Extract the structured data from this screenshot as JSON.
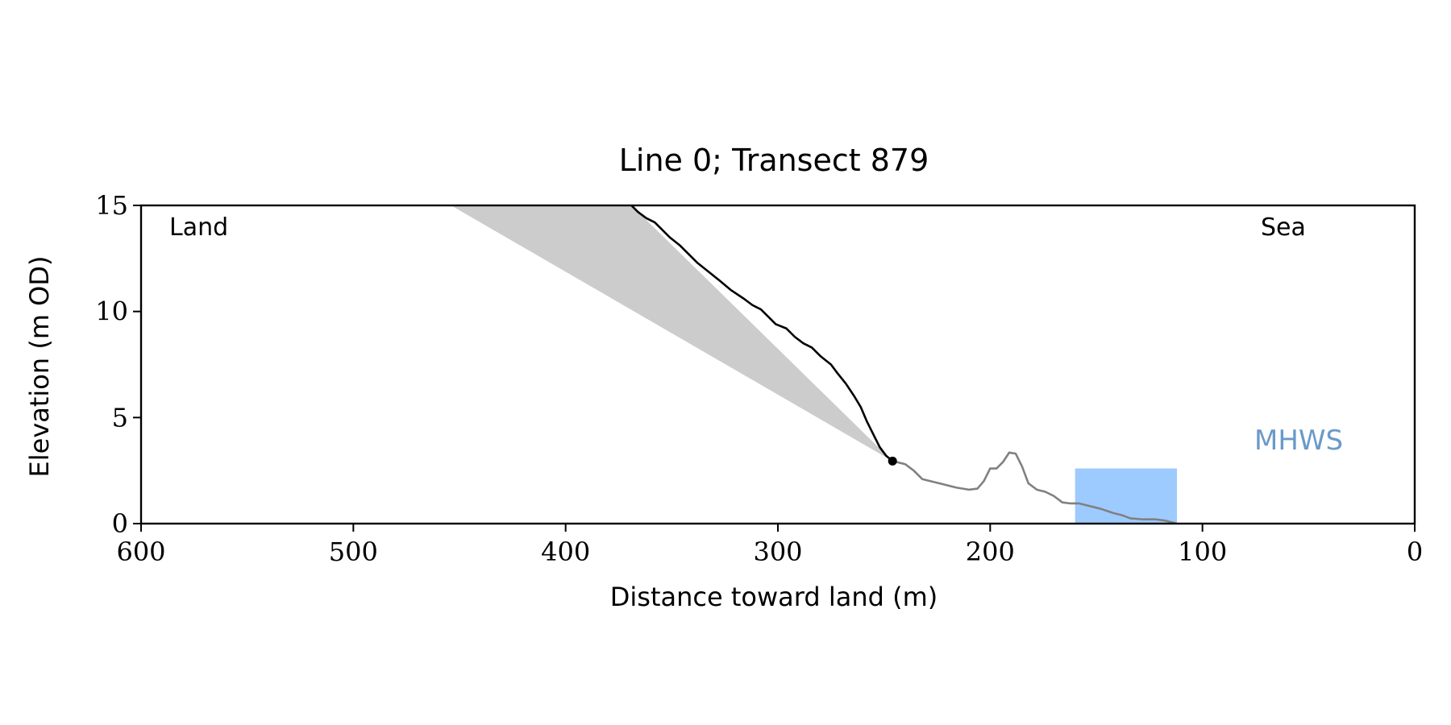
{
  "chart_data": {
    "type": "line",
    "title": "Line 0; Transect 879",
    "xlabel": "Distance toward land (m)",
    "ylabel": "Elevation (m OD)",
    "xlim": [
      600,
      0
    ],
    "ylim": [
      0,
      15
    ],
    "x_ticks": [
      600,
      500,
      400,
      300,
      200,
      100,
      0
    ],
    "y_ticks": [
      0,
      5,
      10,
      15
    ],
    "grid": false,
    "annotations": {
      "land_label": "Land",
      "sea_label": "Sea",
      "mhws_label": "MHWS"
    },
    "colors": {
      "cliff_line": "#000000",
      "beach_line": "#808080",
      "shaded_wedge": "#cccccc",
      "mhws_fill": "#9ecbff",
      "mhws_text": "#6a9ac8"
    },
    "series": [
      {
        "values_xy": [
          [
            369,
            15.0
          ],
          [
            366,
            14.7
          ],
          [
            362,
            14.4
          ],
          [
            358,
            14.2
          ],
          [
            355,
            13.9
          ],
          [
            351,
            13.5
          ],
          [
            346,
            13.1
          ],
          [
            342,
            12.7
          ],
          [
            338,
            12.3
          ],
          [
            333,
            11.9
          ],
          [
            328,
            11.5
          ],
          [
            322,
            11.0
          ],
          [
            316,
            10.6
          ],
          [
            312,
            10.3
          ],
          [
            308,
            10.1
          ],
          [
            305,
            9.8
          ],
          [
            301,
            9.4
          ],
          [
            296,
            9.2
          ],
          [
            292,
            8.8
          ],
          [
            288,
            8.5
          ],
          [
            284,
            8.3
          ],
          [
            280,
            7.9
          ],
          [
            275,
            7.5
          ],
          [
            272,
            7.1
          ],
          [
            268,
            6.6
          ],
          [
            264,
            6.0
          ],
          [
            261,
            5.5
          ],
          [
            258,
            4.8
          ],
          [
            255,
            4.2
          ],
          [
            252,
            3.6
          ],
          [
            249,
            3.2
          ],
          [
            246,
            2.95
          ]
        ]
      },
      {
        "values_xy": [
          [
            246,
            2.95
          ],
          [
            240,
            2.8
          ],
          [
            236,
            2.5
          ],
          [
            232,
            2.1
          ],
          [
            228,
            2.0
          ],
          [
            222,
            1.85
          ],
          [
            216,
            1.7
          ],
          [
            210,
            1.6
          ],
          [
            206,
            1.65
          ],
          [
            203,
            2.0
          ],
          [
            200,
            2.6
          ],
          [
            197,
            2.6
          ],
          [
            194,
            2.9
          ],
          [
            191,
            3.35
          ],
          [
            188,
            3.3
          ],
          [
            185,
            2.7
          ],
          [
            182,
            1.9
          ],
          [
            178,
            1.6
          ],
          [
            174,
            1.5
          ],
          [
            170,
            1.3
          ],
          [
            166,
            1.0
          ],
          [
            162,
            0.95
          ],
          [
            158,
            0.95
          ],
          [
            154,
            0.85
          ],
          [
            148,
            0.7
          ],
          [
            142,
            0.5
          ],
          [
            138,
            0.4
          ],
          [
            134,
            0.25
          ],
          [
            128,
            0.2
          ],
          [
            122,
            0.2
          ],
          [
            118,
            0.15
          ],
          [
            114,
            0.05
          ],
          [
            112,
            0.0
          ]
        ]
      }
    ],
    "shaded_wedge": {
      "polygon": [
        [
          454,
          15.0
        ],
        [
          369,
          15.0
        ],
        [
          246,
          2.95
        ]
      ]
    },
    "cliff_toe_point": [
      246,
      2.95
    ],
    "mhws_box": {
      "x_range": [
        112,
        160
      ],
      "y_range": [
        0,
        2.6
      ]
    }
  }
}
